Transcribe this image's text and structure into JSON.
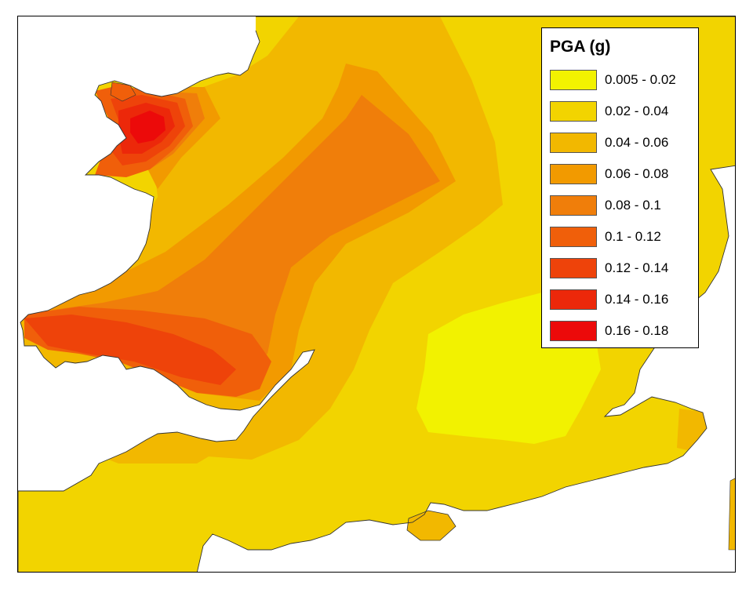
{
  "legend": {
    "title": "PGA (g)",
    "classes": [
      {
        "label": "0.005 - 0.02",
        "color": "#f2f200"
      },
      {
        "label": "0.02 - 0.04",
        "color": "#f2d400"
      },
      {
        "label": "0.04 - 0.06",
        "color": "#f2b800"
      },
      {
        "label": "0.06 - 0.08",
        "color": "#f29a00"
      },
      {
        "label": "0.08 - 0.1",
        "color": "#f07e0a"
      },
      {
        "label": "0.1 - 0.12",
        "color": "#f05f0a"
      },
      {
        "label": "0.12 - 0.14",
        "color": "#ee430a"
      },
      {
        "label": "0.14 - 0.16",
        "color": "#ec280a"
      },
      {
        "label": "0.16 - 0.18",
        "color": "#ec0a0a"
      }
    ]
  },
  "colors": {
    "sea": "#ffffff",
    "frame": "#000000",
    "coastline": "#333333"
  }
}
